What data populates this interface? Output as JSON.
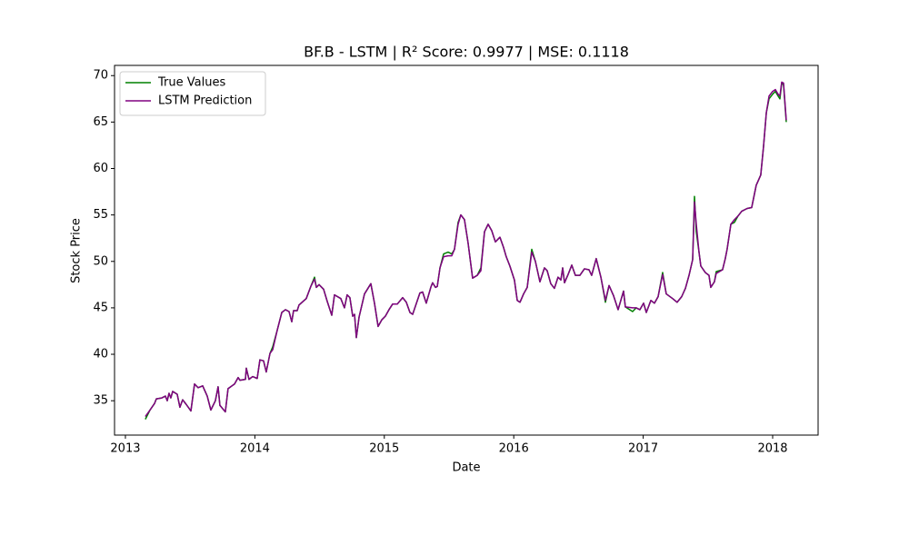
{
  "chart_data": {
    "type": "line",
    "title": "BF.B - LSTM | R² Score: 0.9977 | MSE: 0.1118",
    "x_label": "Date",
    "y_label": "Stock Price",
    "x": [
      2013.154,
      2013.19,
      2013.225,
      2013.239,
      2013.281,
      2013.309,
      2013.323,
      2013.337,
      2013.351,
      2013.365,
      2013.4,
      2013.421,
      2013.442,
      2013.47,
      2013.506,
      2013.534,
      2013.562,
      2013.597,
      2013.632,
      2013.66,
      2013.695,
      2013.716,
      2013.73,
      2013.772,
      2013.793,
      2013.843,
      2013.871,
      2013.885,
      2013.927,
      2013.934,
      2013.955,
      2013.983,
      2014.018,
      2014.039,
      2014.067,
      2014.088,
      2014.117,
      2014.138,
      2014.173,
      2014.208,
      2014.236,
      2014.264,
      2014.285,
      2014.299,
      2014.327,
      2014.341,
      2014.397,
      2014.432,
      2014.461,
      2014.475,
      2014.496,
      2014.531,
      2014.559,
      2014.594,
      2014.615,
      2014.664,
      2014.692,
      2014.713,
      2014.734,
      2014.756,
      2014.77,
      2014.784,
      2014.805,
      2014.847,
      2014.896,
      2014.924,
      2014.952,
      2014.98,
      2015.008,
      2015.036,
      2015.064,
      2015.1,
      2015.142,
      2015.17,
      2015.198,
      2015.219,
      2015.275,
      2015.296,
      2015.324,
      2015.359,
      2015.373,
      2015.395,
      2015.409,
      2015.43,
      2015.458,
      2015.493,
      2015.521,
      2015.542,
      2015.57,
      2015.591,
      2015.619,
      2015.647,
      2015.682,
      2015.718,
      2015.746,
      2015.774,
      2015.802,
      2015.83,
      2015.858,
      2015.893,
      2015.921,
      2015.942,
      2015.97,
      2016.005,
      2016.027,
      2016.048,
      2016.076,
      2016.104,
      2016.139,
      2016.167,
      2016.202,
      2016.237,
      2016.258,
      2016.286,
      2016.314,
      2016.342,
      2016.364,
      2016.378,
      2016.392,
      2016.42,
      2016.448,
      2016.476,
      2016.511,
      2016.546,
      2016.581,
      2016.602,
      2016.637,
      2016.673,
      2016.708,
      2016.736,
      2016.771,
      2016.806,
      2016.848,
      2016.862,
      2016.918,
      2016.946,
      2016.974,
      2017.003,
      2017.024,
      2017.059,
      2017.087,
      2017.115,
      2017.15,
      2017.178,
      2017.227,
      2017.262,
      2017.297,
      2017.326,
      2017.354,
      2017.382,
      2017.396,
      2017.41,
      2017.431,
      2017.445,
      2017.48,
      2017.508,
      2017.522,
      2017.55,
      2017.564,
      2017.613,
      2017.634,
      2017.648,
      2017.677,
      2017.705,
      2017.733,
      2017.761,
      2017.803,
      2017.838,
      2017.873,
      2017.908,
      2017.929,
      2017.951,
      2017.972,
      2018.0,
      2018.021,
      2018.042,
      2018.056,
      2018.07,
      2018.084,
      2018.105
    ],
    "series": [
      {
        "name": "True Values",
        "color": "#008000",
        "values": [
          33.0,
          34.0,
          34.7,
          35.2,
          35.3,
          35.5,
          35.0,
          35.8,
          35.3,
          36.0,
          35.7,
          34.3,
          35.1,
          34.6,
          33.9,
          36.8,
          36.4,
          36.6,
          35.5,
          34.0,
          35.0,
          36.5,
          34.5,
          33.8,
          36.3,
          36.8,
          37.5,
          37.2,
          37.3,
          38.5,
          37.3,
          37.6,
          37.4,
          39.4,
          39.3,
          38.1,
          40.1,
          40.8,
          42.6,
          44.5,
          44.8,
          44.6,
          43.5,
          44.7,
          44.7,
          45.3,
          46.0,
          47.3,
          48.3,
          47.2,
          47.5,
          47.0,
          45.7,
          44.2,
          46.4,
          46.0,
          45.0,
          46.4,
          46.1,
          44.1,
          44.3,
          41.8,
          44.0,
          46.5,
          47.6,
          45.5,
          43.0,
          43.7,
          44.1,
          44.8,
          45.4,
          45.4,
          46.1,
          45.6,
          44.5,
          44.3,
          46.6,
          46.7,
          45.5,
          47.2,
          47.7,
          47.2,
          47.3,
          49.3,
          50.8,
          51.0,
          50.8,
          51.3,
          54.2,
          55.0,
          54.5,
          52.0,
          48.2,
          48.5,
          49.3,
          53.2,
          54.0,
          53.3,
          52.1,
          52.6,
          51.5,
          50.5,
          49.5,
          48.0,
          45.8,
          45.6,
          46.5,
          47.2,
          51.3,
          50.0,
          47.8,
          49.3,
          49.0,
          47.6,
          47.1,
          48.3,
          48.0,
          49.3,
          47.7,
          48.6,
          49.6,
          48.5,
          48.5,
          49.2,
          49.1,
          48.5,
          50.3,
          48.3,
          45.6,
          47.4,
          46.3,
          44.8,
          46.8,
          45.1,
          44.6,
          45.0,
          44.8,
          45.5,
          44.5,
          45.8,
          45.5,
          46.2,
          48.8,
          46.5,
          46.0,
          45.6,
          46.2,
          47.1,
          48.5,
          50.2,
          57.0,
          53.2,
          51.0,
          49.5,
          48.8,
          48.5,
          47.2,
          47.8,
          48.9,
          49.1,
          50.3,
          51.3,
          54.0,
          54.2,
          54.9,
          55.4,
          55.7,
          55.8,
          58.2,
          59.3,
          62.3,
          66.0,
          67.5,
          68.0,
          68.3,
          67.8,
          67.5,
          69.2,
          69.0,
          65.0
        ]
      },
      {
        "name": "LSTM Prediction",
        "color": "#800080",
        "values": [
          33.3,
          34.0,
          34.7,
          35.2,
          35.3,
          35.5,
          35.0,
          35.8,
          35.3,
          36.0,
          35.7,
          34.3,
          35.1,
          34.6,
          33.9,
          36.8,
          36.4,
          36.6,
          35.5,
          34.0,
          35.0,
          36.5,
          34.5,
          33.8,
          36.3,
          36.8,
          37.5,
          37.2,
          37.3,
          38.5,
          37.3,
          37.6,
          37.4,
          39.4,
          39.3,
          38.1,
          40.1,
          40.5,
          42.6,
          44.5,
          44.8,
          44.6,
          43.5,
          44.7,
          44.7,
          45.3,
          46.0,
          47.3,
          48.1,
          47.2,
          47.5,
          47.0,
          45.7,
          44.2,
          46.4,
          46.0,
          45.0,
          46.4,
          46.1,
          44.1,
          44.3,
          41.8,
          44.0,
          46.5,
          47.6,
          45.5,
          43.0,
          43.7,
          44.1,
          44.8,
          45.4,
          45.4,
          46.1,
          45.6,
          44.5,
          44.3,
          46.6,
          46.7,
          45.5,
          47.2,
          47.7,
          47.2,
          47.3,
          49.3,
          50.5,
          50.6,
          50.6,
          51.3,
          54.0,
          55.0,
          54.5,
          52.0,
          48.2,
          48.5,
          49.0,
          53.2,
          54.0,
          53.3,
          52.1,
          52.6,
          51.5,
          50.5,
          49.5,
          48.0,
          45.8,
          45.6,
          46.5,
          47.2,
          51.0,
          50.0,
          47.8,
          49.3,
          49.0,
          47.6,
          47.1,
          48.3,
          48.0,
          49.3,
          47.7,
          48.6,
          49.6,
          48.5,
          48.5,
          49.2,
          49.1,
          48.5,
          50.3,
          48.3,
          45.8,
          47.4,
          46.3,
          44.8,
          46.8,
          45.1,
          45.0,
          45.0,
          44.8,
          45.5,
          44.5,
          45.8,
          45.5,
          46.2,
          48.6,
          46.5,
          46.0,
          45.6,
          46.2,
          47.1,
          48.5,
          50.2,
          56.4,
          54.0,
          51.0,
          49.5,
          48.8,
          48.5,
          47.2,
          47.8,
          48.7,
          49.1,
          50.3,
          51.3,
          54.0,
          54.5,
          54.9,
          55.4,
          55.7,
          55.8,
          58.2,
          59.3,
          62.3,
          66.0,
          67.8,
          68.3,
          68.5,
          68.0,
          67.8,
          69.3,
          69.2,
          65.2
        ]
      }
    ],
    "xlim": [
      2012.916,
      2018.351
    ],
    "xticks": [
      2013,
      2014,
      2015,
      2016,
      2017,
      2018
    ],
    "ylim": [
      31.3,
      71.1
    ],
    "yticks": [
      35,
      40,
      45,
      50,
      55,
      60,
      65,
      70
    ],
    "grid": false,
    "legend": "upper left"
  }
}
